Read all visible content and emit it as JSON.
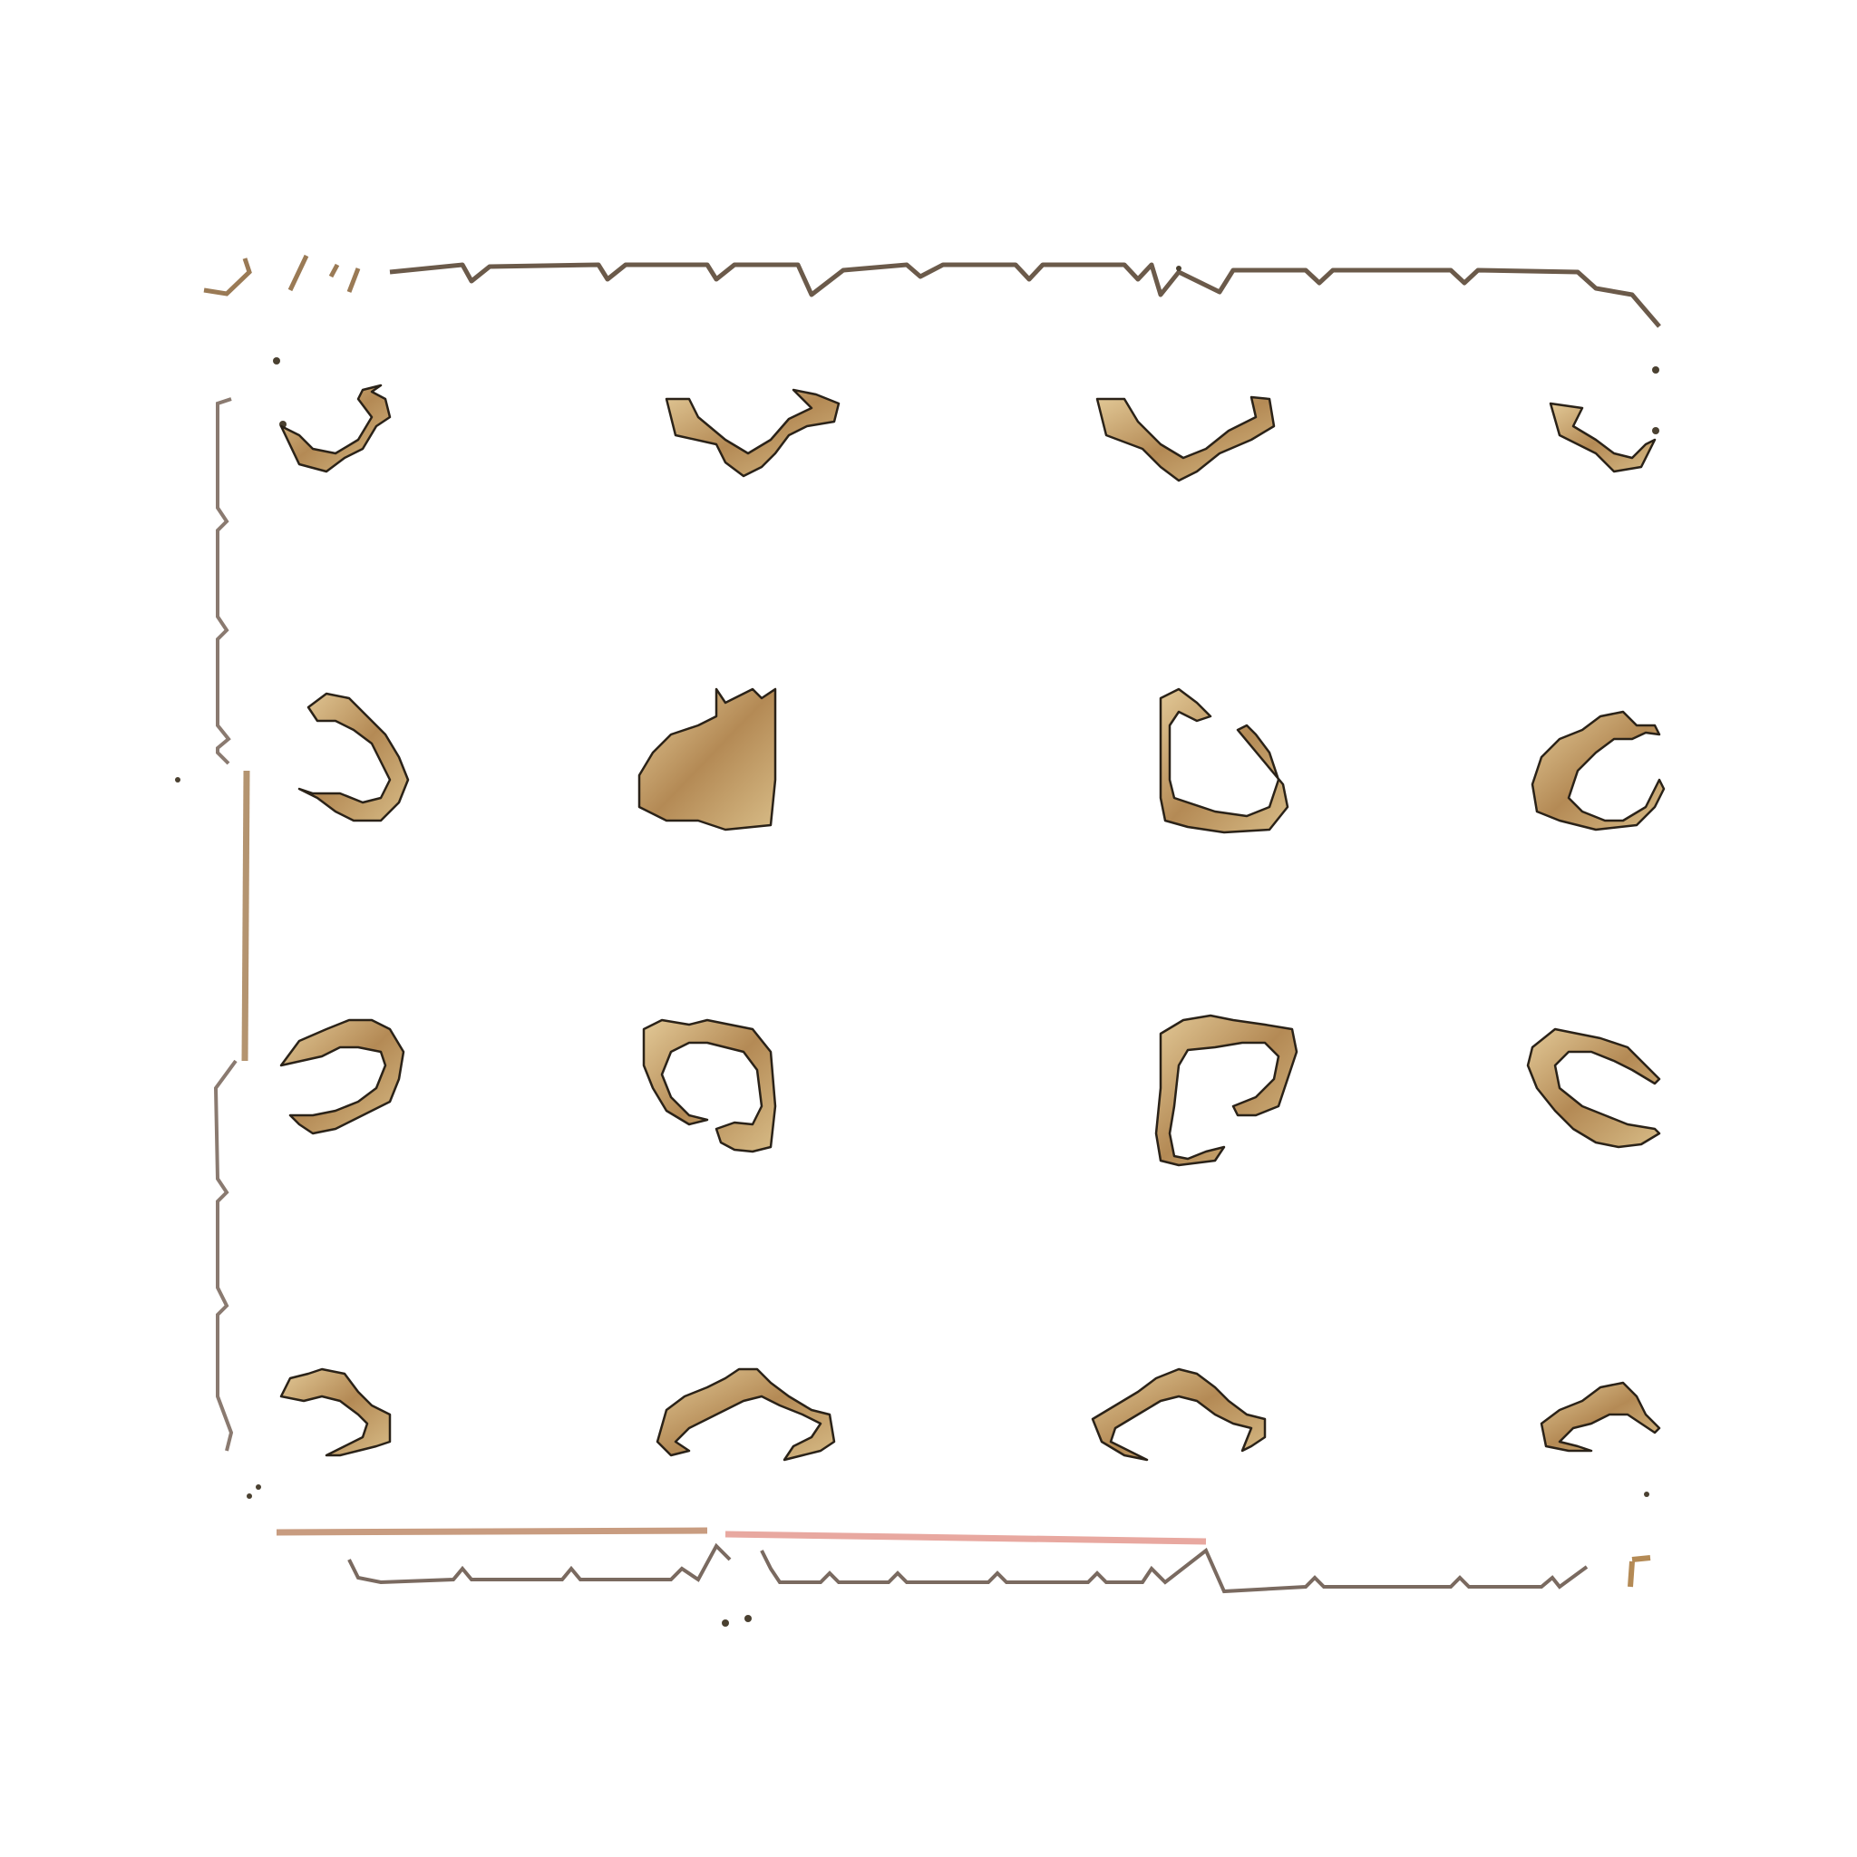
{
  "image": {
    "description_colors": {
      "background": "#ffffff",
      "outline": "#2a2218",
      "fill_primary": "#c9a66b",
      "fill_secondary": "#a88350",
      "fill_light": "#e6d2aa",
      "frame_stroke": "#6b5a4a",
      "frame_pink": "#e8a8a0"
    },
    "motif_grid": {
      "rows": 4,
      "cols": 4
    }
  }
}
